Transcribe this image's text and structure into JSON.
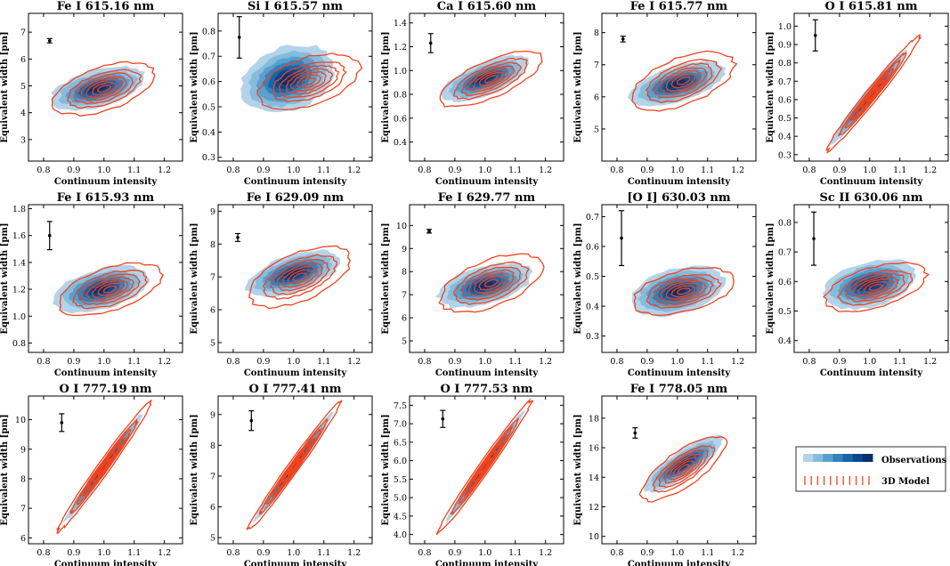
{
  "chart_data": {
    "type": "contour",
    "description": "Equivalent width vs continuum intensity: observed joint distribution (filled blue contours) and 3D model (red contour lines) for 14 spectral lines",
    "xlabel": "Continuum intensity",
    "ylabel": "Equivalent width [pm]",
    "xlim": [
      0.75,
      1.26
    ],
    "xticks": [
      0.8,
      0.9,
      1.0,
      1.1,
      1.2
    ],
    "xtick_labels": [
      "0.8",
      "0.9",
      "1.0",
      "1.1",
      "1.2"
    ],
    "colors": {
      "obs_levels": [
        "#b3d3ea",
        "#85bcdc",
        "#5a9fcf",
        "#3282bd",
        "#1765a9",
        "#08488e",
        "#08306b"
      ],
      "model": "#f0431e",
      "errorbar": "#000000"
    },
    "panels": [
      {
        "title": "Fe I 615.16 nm",
        "ylim": [
          2.2,
          7.7
        ],
        "yticks": [
          3,
          4,
          5,
          6,
          7
        ],
        "ytick_labels": [
          "3",
          "4",
          "5",
          "6",
          "7"
        ],
        "errorbar": {
          "x": 0.82,
          "y": 6.68,
          "err": 0.08
        },
        "obs_center": [
          0.98,
          4.9
        ],
        "obs_spread": [
          0.12,
          0.55
        ],
        "obs_slope": 2.5,
        "model_center": [
          1.0,
          4.9
        ],
        "model_spread": [
          0.12,
          0.6
        ],
        "model_slope": 3.0
      },
      {
        "title": "Si I 615.57 nm",
        "ylim": [
          0.285,
          0.87
        ],
        "yticks": [
          0.3,
          0.4,
          0.5,
          0.6,
          0.7,
          0.8
        ],
        "ytick_labels": [
          "0.3",
          "0.4",
          "0.5",
          "0.6",
          "0.7",
          "0.8"
        ],
        "errorbar": {
          "x": 0.82,
          "y": 0.775,
          "err": 0.082
        },
        "obs_center": [
          0.98,
          0.61
        ],
        "obs_spread": [
          0.12,
          0.1
        ],
        "obs_slope": 0.25,
        "model_center": [
          1.05,
          0.6
        ],
        "model_spread": [
          0.12,
          0.07
        ],
        "model_slope": 0.3
      },
      {
        "title": "Ca I 615.60 nm",
        "ylim": [
          0.24,
          1.48
        ],
        "yticks": [
          0.4,
          0.6,
          0.8,
          1.0,
          1.2,
          1.4
        ],
        "ytick_labels": [
          "0.4",
          "0.6",
          "0.8",
          "1.0",
          "1.2",
          "1.4"
        ],
        "errorbar": {
          "x": 0.82,
          "y": 1.23,
          "err": 0.08
        },
        "obs_center": [
          1.0,
          0.93
        ],
        "obs_spread": [
          0.11,
          0.11
        ],
        "obs_slope": 0.9,
        "model_center": [
          1.02,
          0.93
        ],
        "model_spread": [
          0.12,
          0.12
        ],
        "model_slope": 1.0
      },
      {
        "title": "Fe I 615.77 nm",
        "ylim": [
          4.0,
          8.6
        ],
        "yticks": [
          5,
          6,
          7,
          8
        ],
        "ytick_labels": [
          "5",
          "6",
          "7",
          "8"
        ],
        "errorbar": {
          "x": 0.82,
          "y": 7.8,
          "err": 0.09
        },
        "obs_center": [
          1.0,
          6.4
        ],
        "obs_spread": [
          0.12,
          0.45
        ],
        "obs_slope": 2.5,
        "model_center": [
          1.02,
          6.5
        ],
        "model_spread": [
          0.12,
          0.55
        ],
        "model_slope": 3.0
      },
      {
        "title": "O I 615.81 nm",
        "ylim": [
          0.265,
          1.07
        ],
        "yticks": [
          0.3,
          0.4,
          0.5,
          0.6,
          0.7,
          0.8,
          0.9,
          1.0
        ],
        "ytick_labels": [
          "0.3",
          "0.4",
          "0.5",
          "0.6",
          "0.7",
          "0.8",
          "0.9",
          "1.0"
        ],
        "errorbar": {
          "x": 0.82,
          "y": 0.95,
          "err": 0.085
        },
        "obs_center": [
          1.0,
          0.62
        ],
        "obs_spread": [
          0.1,
          0.04
        ],
        "obs_slope": 2.0,
        "model_center": [
          1.01,
          0.63
        ],
        "model_spread": [
          0.11,
          0.04
        ],
        "model_slope": 2.0
      },
      {
        "title": "Fe I 615.93 nm",
        "ylim": [
          0.73,
          1.83
        ],
        "yticks": [
          0.8,
          1.0,
          1.2,
          1.4,
          1.6,
          1.8
        ],
        "ytick_labels": [
          "0.8",
          "1.0",
          "1.2",
          "1.4",
          "1.6",
          "1.8"
        ],
        "errorbar": {
          "x": 0.82,
          "y": 1.6,
          "err": 0.105
        },
        "obs_center": [
          0.99,
          1.2
        ],
        "obs_spread": [
          0.12,
          0.12
        ],
        "obs_slope": 0.5,
        "model_center": [
          1.02,
          1.2
        ],
        "model_spread": [
          0.12,
          0.12
        ],
        "model_slope": 0.6
      },
      {
        "title": "Fe I 629.09 nm",
        "ylim": [
          4.7,
          9.2
        ],
        "yticks": [
          5,
          6,
          7,
          8,
          9
        ],
        "ytick_labels": [
          "5",
          "6",
          "7",
          "8",
          "9"
        ],
        "errorbar": {
          "x": 0.815,
          "y": 8.2,
          "err": 0.12
        },
        "obs_center": [
          1.0,
          7.1
        ],
        "obs_spread": [
          0.12,
          0.45
        ],
        "obs_slope": 2.5,
        "model_center": [
          1.02,
          7.0
        ],
        "model_spread": [
          0.12,
          0.55
        ],
        "model_slope": 3.0
      },
      {
        "title": "Fe I 629.77 nm",
        "ylim": [
          4.5,
          10.9
        ],
        "yticks": [
          5,
          6,
          7,
          8,
          9,
          10
        ],
        "ytick_labels": [
          "5",
          "6",
          "7",
          "8",
          "9",
          "10"
        ],
        "errorbar": {
          "x": 0.815,
          "y": 9.75,
          "err": 0.08
        },
        "obs_center": [
          1.0,
          7.4
        ],
        "obs_spread": [
          0.12,
          0.65
        ],
        "obs_slope": 3.0,
        "model_center": [
          1.02,
          7.5
        ],
        "model_spread": [
          0.12,
          0.75
        ],
        "model_slope": 4.0
      },
      {
        "title": "[O I] 630.03 nm",
        "ylim": [
          0.245,
          0.74
        ],
        "yticks": [
          0.3,
          0.4,
          0.5,
          0.6,
          0.7
        ],
        "ytick_labels": [
          "0.3",
          "0.4",
          "0.5",
          "0.6",
          "0.7"
        ],
        "errorbar": {
          "x": 0.815,
          "y": 0.628,
          "err": 0.092
        },
        "obs_center": [
          1.0,
          0.45
        ],
        "obs_spread": [
          0.12,
          0.06
        ],
        "obs_slope": 0.2,
        "model_center": [
          1.02,
          0.45
        ],
        "model_spread": [
          0.12,
          0.05
        ],
        "model_slope": 0.2
      },
      {
        "title": "Sc II 630.06 nm",
        "ylim": [
          0.36,
          0.86
        ],
        "yticks": [
          0.4,
          0.5,
          0.6,
          0.7,
          0.8
        ],
        "ytick_labels": [
          "0.4",
          "0.5",
          "0.6",
          "0.7",
          "0.8"
        ],
        "errorbar": {
          "x": 0.815,
          "y": 0.745,
          "err": 0.09
        },
        "obs_center": [
          1.0,
          0.59
        ],
        "obs_spread": [
          0.12,
          0.06
        ],
        "obs_slope": 0.2,
        "model_center": [
          1.02,
          0.58
        ],
        "model_spread": [
          0.12,
          0.05
        ],
        "model_slope": 0.25
      },
      {
        "title": "O I 777.19 nm",
        "ylim": [
          5.8,
          10.8
        ],
        "yticks": [
          6,
          7,
          8,
          9,
          10
        ],
        "ytick_labels": [
          "6",
          "7",
          "8",
          "9",
          "10"
        ],
        "errorbar": {
          "x": 0.86,
          "y": 9.9,
          "err": 0.3
        },
        "obs_center": [
          1.0,
          8.4
        ],
        "obs_spread": [
          0.1,
          0.22
        ],
        "obs_slope": 14.0,
        "model_center": [
          1.0,
          8.4
        ],
        "model_spread": [
          0.11,
          0.25
        ],
        "model_slope": 14.0
      },
      {
        "title": "O I 777.41 nm",
        "ylim": [
          4.8,
          9.6
        ],
        "yticks": [
          5,
          6,
          7,
          8,
          9
        ],
        "ytick_labels": [
          "5",
          "6",
          "7",
          "8",
          "9"
        ],
        "errorbar": {
          "x": 0.86,
          "y": 8.8,
          "err": 0.32
        },
        "obs_center": [
          1.0,
          7.3
        ],
        "obs_spread": [
          0.1,
          0.2
        ],
        "obs_slope": 13.5,
        "model_center": [
          1.0,
          7.3
        ],
        "model_spread": [
          0.11,
          0.22
        ],
        "model_slope": 13.5
      },
      {
        "title": "O I 777.53 nm",
        "ylim": [
          3.75,
          7.75
        ],
        "yticks": [
          4.0,
          4.5,
          5.0,
          5.5,
          6.0,
          6.5,
          7.0,
          7.5
        ],
        "ytick_labels": [
          "4.0",
          "4.5",
          "5.0",
          "5.5",
          "6.0",
          "6.5",
          "7.0",
          "7.5"
        ],
        "errorbar": {
          "x": 0.86,
          "y": 7.13,
          "err": 0.23
        },
        "obs_center": [
          1.0,
          5.85
        ],
        "obs_spread": [
          0.1,
          0.17
        ],
        "obs_slope": 11.5,
        "model_center": [
          1.0,
          5.85
        ],
        "model_spread": [
          0.11,
          0.19
        ],
        "model_slope": 11.5
      },
      {
        "title": "Fe I 778.05 nm",
        "ylim": [
          9.5,
          19.5
        ],
        "yticks": [
          10,
          12,
          14,
          16,
          18
        ],
        "ytick_labels": [
          "10",
          "12",
          "14",
          "16",
          "18"
        ],
        "errorbar": {
          "x": 0.86,
          "y": 17.0,
          "err": 0.35
        },
        "obs_center": [
          1.02,
          14.9
        ],
        "obs_spread": [
          0.1,
          0.8
        ],
        "obs_slope": 12.0,
        "model_center": [
          1.02,
          14.6
        ],
        "model_spread": [
          0.1,
          1.0
        ],
        "model_slope": 12.0
      }
    ],
    "legend": {
      "position": "bottom-right",
      "entries": [
        {
          "label": "Observations",
          "style": "filled-contour-colorbar"
        },
        {
          "label": "3D Model",
          "style": "red-contour-lines"
        }
      ]
    }
  }
}
